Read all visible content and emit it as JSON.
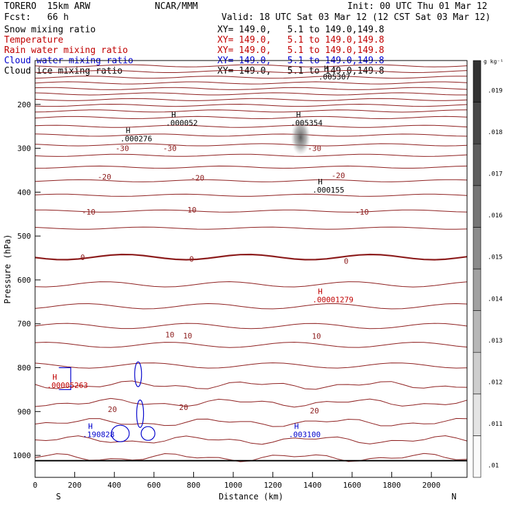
{
  "header": {
    "model": "TORERO  15km ARW",
    "org": "NCAR/MMM",
    "init": "Init: 00 UTC Thu 01 Mar 12",
    "fcst": "Fcst:   66 h",
    "valid": "Valid: 18 UTC Sat 03 Mar 12 (12 CST Sat 03 Mar 12)"
  },
  "legend": [
    {
      "label": "Snow mixing ratio",
      "xy": "XY= 149.0,   5.1 to 149.0,149.8",
      "color": "#000000"
    },
    {
      "label": "Temperature",
      "xy": "XY= 149.0,   5.1 to 149.0,149.8",
      "color": "#c00000"
    },
    {
      "label": "Rain water mixing ratio",
      "xy": "XY= 149.0,   5.1 to 149.0,149.8",
      "color": "#c00000"
    },
    {
      "label": "Cloud water mixing ratio",
      "xy": "XY= 149.0,   5.1 to 149.0,149.8",
      "color": "#0000cc"
    },
    {
      "label": "Cloud ice mixing ratio",
      "xy": "XY= 149.0,   5.1 to 149.0,149.8",
      "color": "#000000"
    }
  ],
  "chart_data": {
    "type": "contour_cross_section",
    "xlabel": "Distance (km)",
    "ylabel": "Pressure (hPa)",
    "xlim": [
      0,
      2180
    ],
    "ylim": [
      1050,
      100
    ],
    "x_ticks": [
      0,
      200,
      400,
      600,
      800,
      1000,
      1200,
      1400,
      1600,
      1800,
      2000
    ],
    "y_ticks": [
      200,
      300,
      400,
      500,
      600,
      700,
      800,
      900,
      1000
    ],
    "end_labels": {
      "left": "S",
      "right": "N"
    },
    "colorbar": {
      "units": "g kg⁻¹",
      "ticks": [
        ".01",
        ".011",
        ".012",
        ".013",
        ".014",
        ".015",
        ".016",
        ".017",
        ".018",
        ".019"
      ]
    },
    "temperature_contour_labels": [
      {
        "x": 440,
        "p": 300,
        "text": "-30"
      },
      {
        "x": 680,
        "p": 300,
        "text": "-30"
      },
      {
        "x": 1410,
        "p": 300,
        "text": "-30"
      },
      {
        "x": 350,
        "p": 365,
        "text": "-20"
      },
      {
        "x": 820,
        "p": 367,
        "text": "-20"
      },
      {
        "x": 1530,
        "p": 362,
        "text": "-20"
      },
      {
        "x": 270,
        "p": 445,
        "text": "-10"
      },
      {
        "x": 780,
        "p": 440,
        "text": "-10"
      },
      {
        "x": 1650,
        "p": 445,
        "text": "-10"
      },
      {
        "x": 240,
        "p": 548,
        "text": "0"
      },
      {
        "x": 790,
        "p": 552,
        "text": "0"
      },
      {
        "x": 1570,
        "p": 557,
        "text": "0"
      },
      {
        "x": 680,
        "p": 725,
        "text": "10"
      },
      {
        "x": 770,
        "p": 727,
        "text": "10"
      },
      {
        "x": 1420,
        "p": 728,
        "text": "10"
      },
      {
        "x": 390,
        "p": 895,
        "text": "20"
      },
      {
        "x": 750,
        "p": 890,
        "text": "20"
      },
      {
        "x": 1410,
        "p": 898,
        "text": "20"
      }
    ],
    "maxima_labels": [
      {
        "x": 660,
        "p": 242,
        "text": ".000052",
        "color": "#000000"
      },
      {
        "x": 1290,
        "p": 242,
        "text": ".005354",
        "color": "#000000"
      },
      {
        "x": 430,
        "p": 278,
        "text": ".000276",
        "color": "#000000"
      },
      {
        "x": 1400,
        "p": 395,
        "text": ".000155",
        "color": "#000000"
      },
      {
        "x": 1430,
        "p": 137,
        "text": ".005307",
        "color": "#000000"
      },
      {
        "x": 1400,
        "p": 645,
        "text": ".00001279",
        "color": "#c00000"
      },
      {
        "x": 60,
        "p": 840,
        "text": ".00005263",
        "color": "#c00000"
      },
      {
        "x": 240,
        "p": 952,
        "text": ".190828",
        "color": "#0000cc"
      },
      {
        "x": 1280,
        "p": 952,
        "text": ".003100",
        "color": "#0000cc"
      }
    ]
  }
}
